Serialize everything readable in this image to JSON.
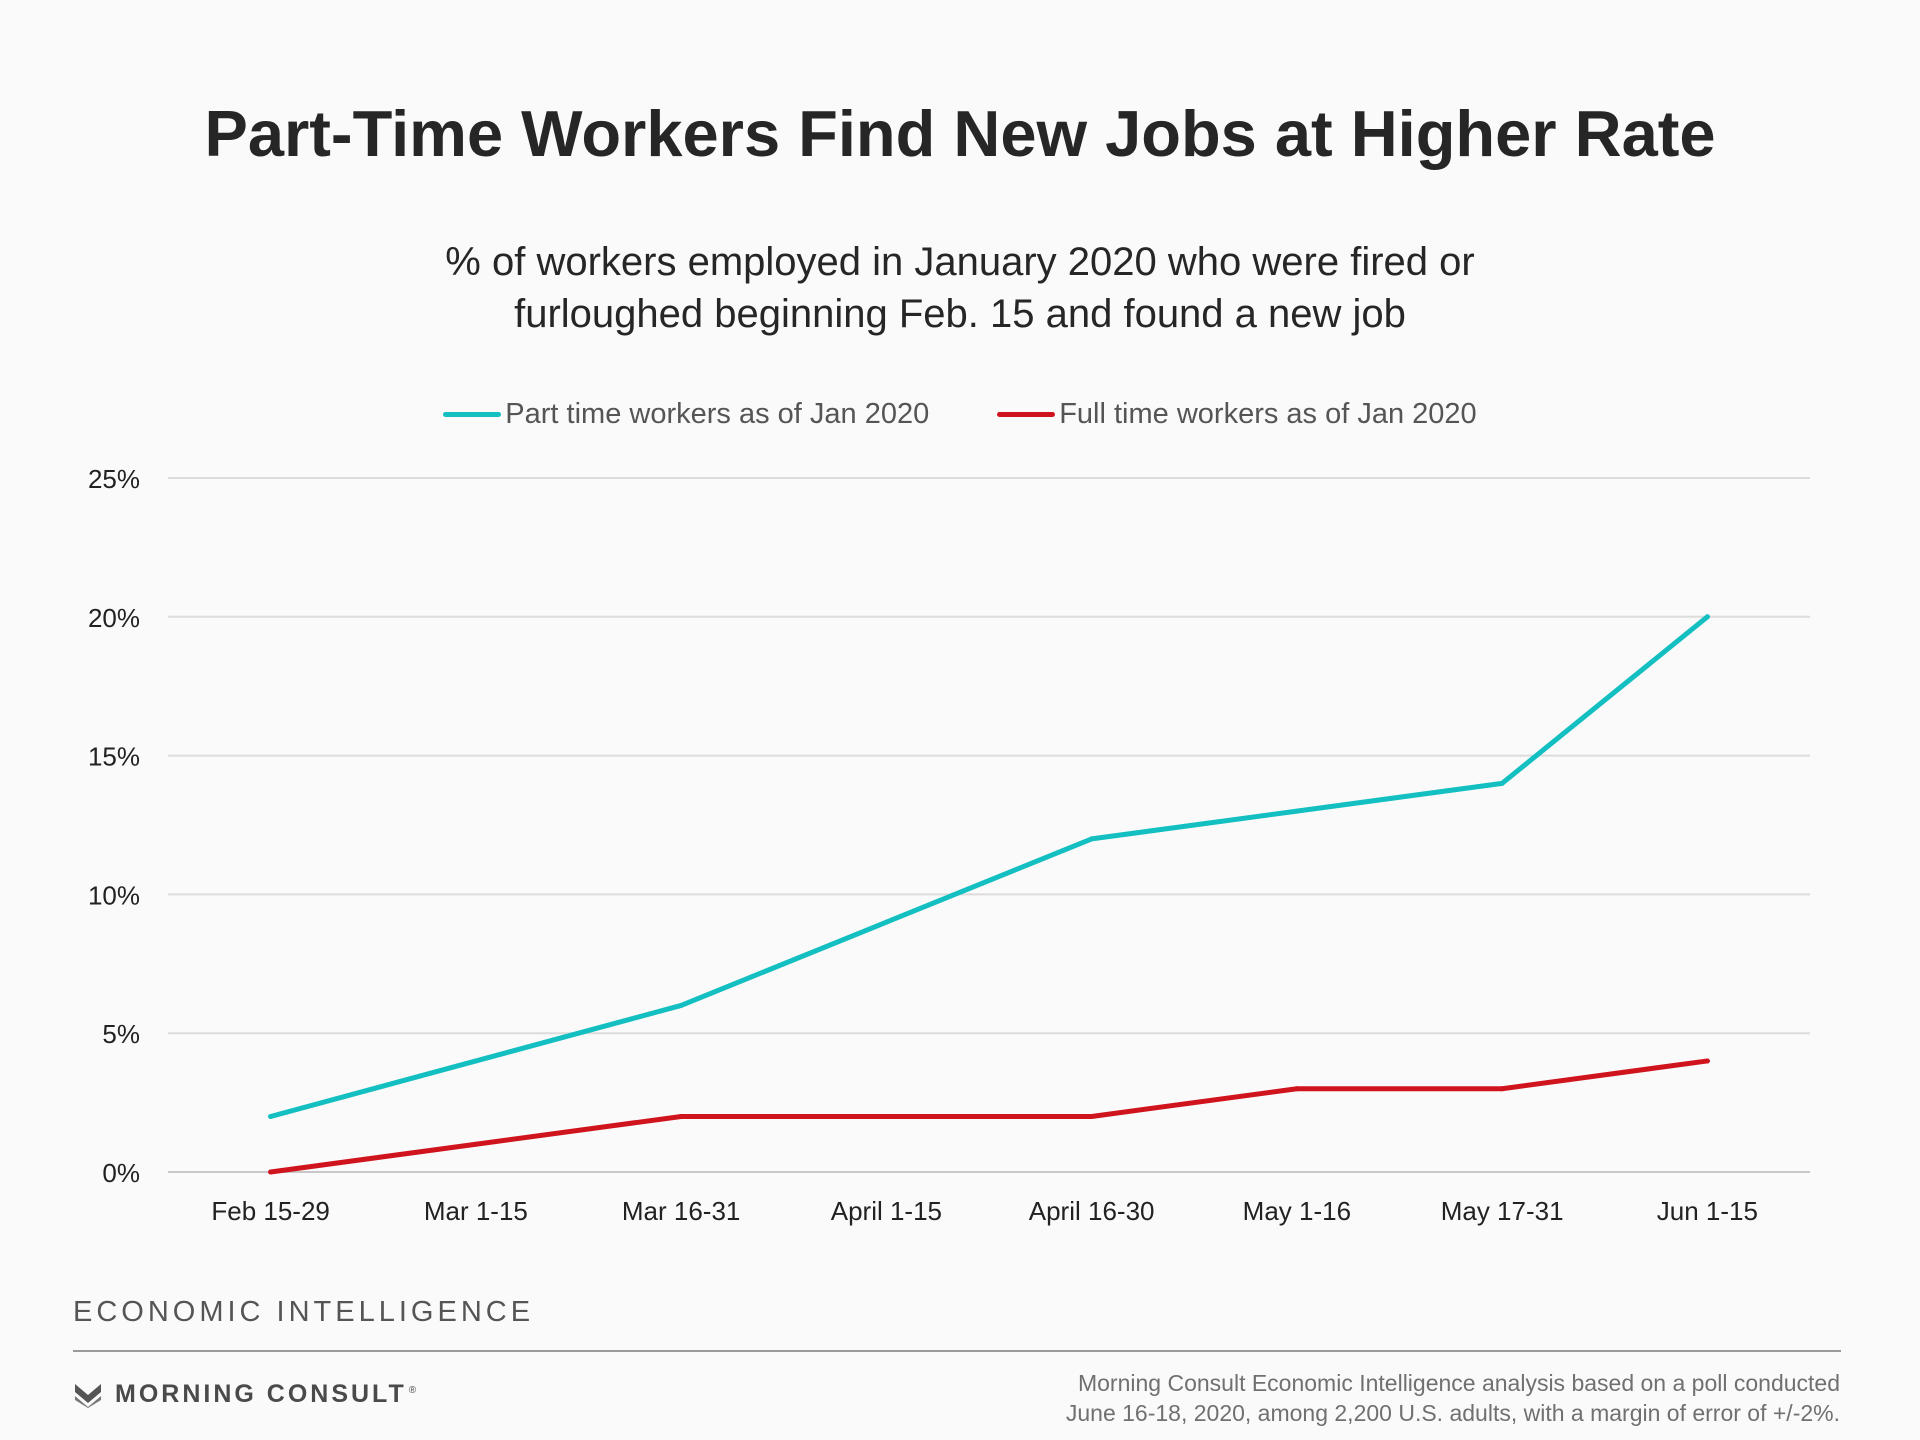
{
  "title": "Part-Time Workers Find New Jobs at Higher Rate",
  "subtitle_lines": [
    "% of workers employed in January 2020 who were fired or",
    "furloughed beginning Feb. 15 and found a new job"
  ],
  "colors": {
    "part_time": "#13bfc1",
    "full_time": "#d0141e"
  },
  "chart_data": {
    "type": "line",
    "title": "Part-Time Workers Find New Jobs at Higher Rate",
    "subtitle": "% of workers employed in January 2020 who were fired or furloughed beginning Feb. 15 and found a new job",
    "categories": [
      "Feb 15-29",
      "Mar 1-15",
      "Mar 16-31",
      "April 1-15",
      "April 16-30",
      "May 1-16",
      "May 17-31",
      "Jun 1-15"
    ],
    "series": [
      {
        "name": "Part time workers as of Jan 2020",
        "values": [
          2,
          4,
          6,
          9,
          12,
          13,
          14,
          20
        ]
      },
      {
        "name": "Full time workers as of Jan 2020",
        "values": [
          0,
          1,
          2,
          2,
          2,
          3,
          3,
          4
        ]
      }
    ],
    "ylim": [
      0,
      25
    ],
    "yticks": [
      0,
      5,
      10,
      15,
      20,
      25
    ],
    "ytick_labels": [
      "0%",
      "5%",
      "10%",
      "15%",
      "20%",
      "25%"
    ],
    "grid": true,
    "legend_position": "top-center",
    "xlabel": "",
    "ylabel": ""
  },
  "footer": {
    "section": "ECONOMIC INTELLIGENCE",
    "brand": "MORNING CONSULT",
    "trademark": "®",
    "source_lines": [
      "Morning Consult Economic Intelligence analysis based on a poll conducted",
      "June 16-18, 2020, among 2,200 U.S. adults, with a margin of error of +/-2%."
    ]
  }
}
